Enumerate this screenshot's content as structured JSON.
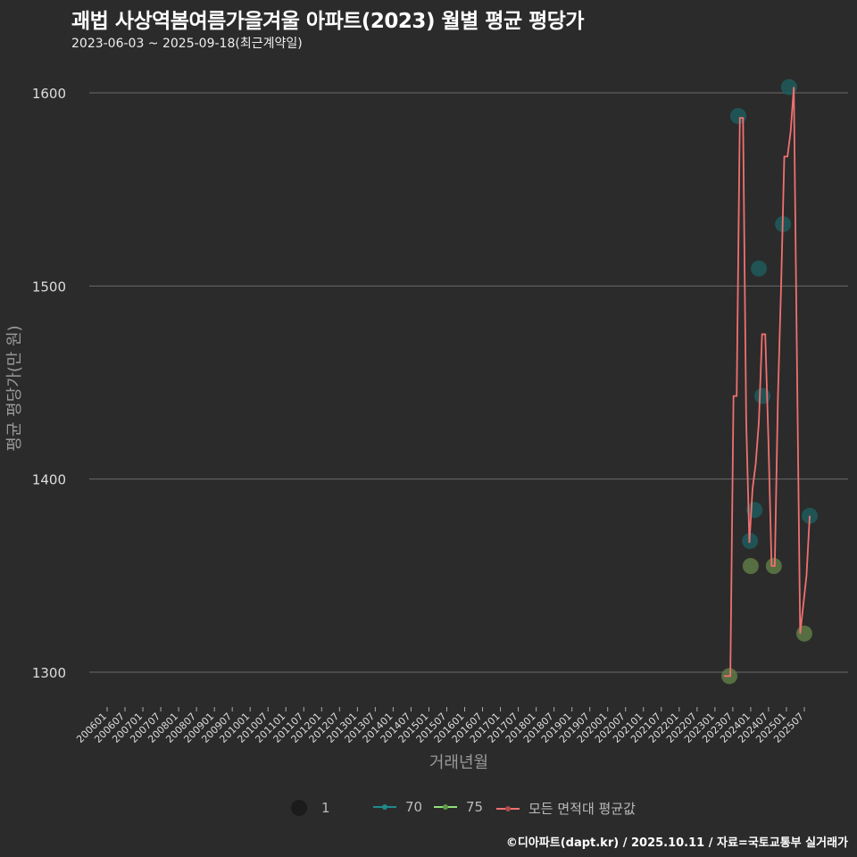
{
  "title": "괘법 사상역봄여름가을겨울 아파트(2023) 월별 평균 평당가",
  "subtitle": "2023-06-03 ~ 2025-09-18(최근계약일)",
  "footer": "©디아파트(dapt.kr) / 2025.10.11 / 자료=국토교통부 실거래가",
  "colors": {
    "bg": "#2b2b2b",
    "grid": "#6a6a6a",
    "s70": "#1f5c5c",
    "s75": "#5e7a45",
    "mean": "#f07070"
  },
  "chart_data": {
    "type": "scatter+line",
    "xlabel": "거래년월",
    "ylabel": "평균 평당가(만 원)",
    "ylim": [
      1285,
      1610
    ],
    "yticks": [
      1300,
      1400,
      1500,
      1600
    ],
    "xticks": [
      "200601",
      "200607",
      "200701",
      "200707",
      "200801",
      "200807",
      "200901",
      "200907",
      "201001",
      "201007",
      "201101",
      "201107",
      "201201",
      "201207",
      "201301",
      "201307",
      "201401",
      "201407",
      "201501",
      "201507",
      "201601",
      "201607",
      "201701",
      "201707",
      "201801",
      "201807",
      "201901",
      "201907",
      "202001",
      "202007",
      "202101",
      "202107",
      "202201",
      "202207",
      "202301",
      "202307",
      "202401",
      "202407",
      "202501",
      "202507"
    ],
    "grid": true,
    "legend": {
      "position": "bottom",
      "size_label": "1",
      "entries": [
        {
          "name": "70",
          "color": "#1f8a8a"
        },
        {
          "name": "75",
          "color": "#8fe07a"
        },
        {
          "name": "모든 면적대 평균값",
          "color": "#f07070"
        }
      ]
    },
    "points": [
      {
        "date": "2023-07-22",
        "value": 1298,
        "area": "75"
      },
      {
        "date": "2023-10-16",
        "value": 1588,
        "area": "70"
      },
      {
        "date": "2024-02-07",
        "value": 1368,
        "area": "70"
      },
      {
        "date": "2024-02-13",
        "value": 1355,
        "area": "75"
      },
      {
        "date": "2024-03-19",
        "value": 1384,
        "area": "70"
      },
      {
        "date": "2024-05-01",
        "value": 1509,
        "area": "70"
      },
      {
        "date": "2024-06-04",
        "value": 1443,
        "area": "70"
      },
      {
        "date": "2024-09-22",
        "value": 1355,
        "area": "75"
      },
      {
        "date": "2024-12-19",
        "value": 1532,
        "area": "70"
      },
      {
        "date": "2025-02-16",
        "value": 1603,
        "area": "70"
      },
      {
        "date": "2025-07-10",
        "value": 1320,
        "area": "75"
      },
      {
        "date": "2025-09-01",
        "value": 1381,
        "area": "70"
      }
    ],
    "mean_series": {
      "start": "2023-06",
      "values": [
        1298,
        1298,
        1298,
        1443,
        1443,
        1587,
        1587,
        1430,
        1367,
        1395,
        1408,
        1430,
        1475,
        1475,
        1420,
        1355,
        1355,
        1443,
        1500,
        1567,
        1567,
        1580,
        1603,
        1460,
        1320,
        1335,
        1350,
        1381
      ]
    }
  }
}
